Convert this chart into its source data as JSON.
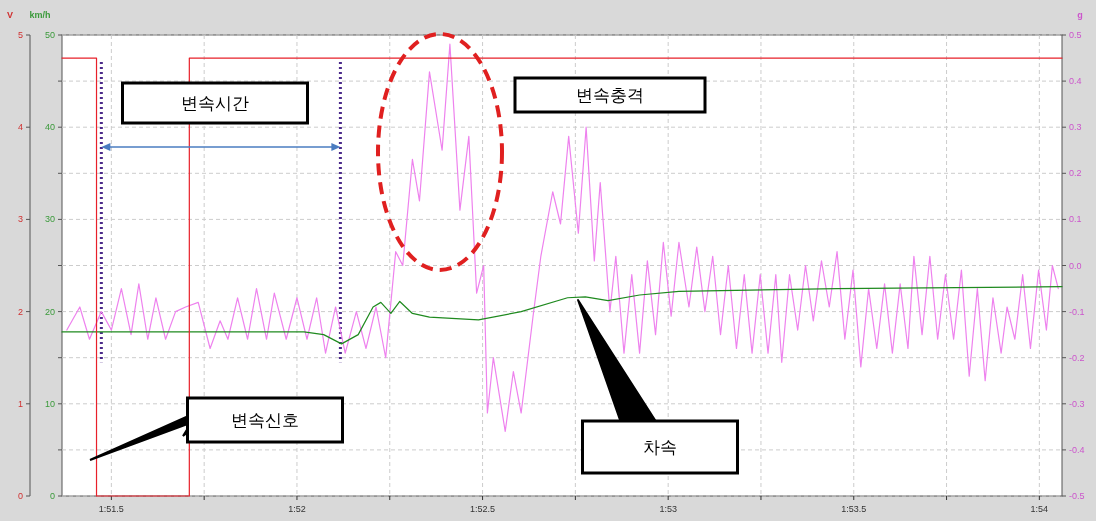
{
  "chart_data": {
    "type": "line",
    "xlim": [
      111.367,
      114.061
    ],
    "xticks": [
      {
        "value": 111.5,
        "label": "1:51.5"
      },
      {
        "value": 111.75,
        "label": null
      },
      {
        "value": 112,
        "label": "1:52"
      },
      {
        "value": 112.25,
        "label": null
      },
      {
        "value": 112.5,
        "label": "1:52.5"
      },
      {
        "value": 112.75,
        "label": null
      },
      {
        "value": 113,
        "label": "1:53"
      },
      {
        "value": 113.25,
        "label": null
      },
      {
        "value": 113.5,
        "label": "1:53.5"
      },
      {
        "value": 113.75,
        "label": null
      },
      {
        "value": 114,
        "label": "1:54"
      }
    ],
    "ylabel": "km/h",
    "ylim": [
      0,
      50
    ],
    "yticks": [
      0,
      {
        "value": 5,
        "label": null
      },
      10,
      {
        "value": 15,
        "label": null
      },
      20,
      {
        "value": 25,
        "label": null
      },
      30,
      {
        "value": 35,
        "label": null
      },
      40,
      {
        "value": 45,
        "label": null
      },
      50
    ],
    "y2label": "g",
    "y2lim": [
      -0.5,
      0.5
    ],
    "y2ticks": [
      -0.5,
      -0.4,
      -0.3,
      -0.2,
      -0.1,
      {
        "value": 0,
        "label": "0.0"
      },
      0.1,
      0.2,
      0.3,
      0.4,
      0.5
    ],
    "y3label": "V",
    "y3lim": [
      0,
      5
    ],
    "y3ticks": [
      0,
      1,
      2,
      3,
      4,
      5
    ],
    "grid": true,
    "series": [
      {
        "name": "변속신호",
        "axis": "y3",
        "color": "#e8202a",
        "x": [
          111.367,
          111.46,
          111.46,
          111.71,
          111.71,
          114.061
        ],
        "values": [
          4.75,
          4.75,
          0,
          0,
          4.75,
          4.75
        ]
      },
      {
        "axis": "y",
        "color": "#1f8a1f",
        "x": [
          111.367,
          112.019,
          112.072,
          112.12,
          112.165,
          112.205,
          112.226,
          112.253,
          112.277,
          112.311,
          112.357,
          112.489,
          112.604,
          112.729,
          112.777,
          112.838,
          112.923,
          113.029,
          113.455,
          114.061
        ],
        "values": [
          17.8,
          17.8,
          17.5,
          16.5,
          17.5,
          20.5,
          21,
          19.8,
          21.1,
          19.8,
          19.4,
          19.1,
          20.0,
          21.5,
          21.6,
          21.2,
          21.8,
          22.2,
          22.5,
          22.7
        ]
      },
      {
        "axis": "y2",
        "color": "#ee82ee",
        "x": [
          111.38,
          111.415,
          111.441,
          111.473,
          111.5,
          111.527,
          111.553,
          111.574,
          111.598,
          111.62,
          111.646,
          111.673,
          111.7,
          111.734,
          111.766,
          111.793,
          111.814,
          111.84,
          111.867,
          111.891,
          111.918,
          111.939,
          111.971,
          112.0,
          112.027,
          112.053,
          112.077,
          112.104,
          112.13,
          112.16,
          112.186,
          112.213,
          112.239,
          112.266,
          112.285,
          112.311,
          112.33,
          112.357,
          112.391,
          112.412,
          112.439,
          112.463,
          112.484,
          112.503,
          112.513,
          112.529,
          112.561,
          112.583,
          112.604,
          112.636,
          112.657,
          112.689,
          112.71,
          112.732,
          112.758,
          112.779,
          112.801,
          112.817,
          112.843,
          112.859,
          112.881,
          112.902,
          112.923,
          112.944,
          112.966,
          112.987,
          113.008,
          113.029,
          113.056,
          113.077,
          113.099,
          113.12,
          113.141,
          113.162,
          113.184,
          113.205,
          113.226,
          113.248,
          113.269,
          113.29,
          113.306,
          113.327,
          113.349,
          113.37,
          113.391,
          113.413,
          113.434,
          113.455,
          113.476,
          113.498,
          113.519,
          113.54,
          113.562,
          113.583,
          113.604,
          113.625,
          113.646,
          113.662,
          113.684,
          113.705,
          113.726,
          113.747,
          113.769,
          113.79,
          113.811,
          113.833,
          113.854,
          113.875,
          113.897,
          113.913,
          113.934,
          113.955,
          113.976,
          113.998,
          114.019,
          114.035,
          114.051
        ],
        "values": [
          -0.14,
          -0.09,
          -0.16,
          -0.1,
          -0.14,
          -0.05,
          -0.15,
          -0.04,
          -0.16,
          -0.07,
          -0.16,
          -0.1,
          -0.09,
          -0.08,
          -0.18,
          -0.12,
          -0.16,
          -0.07,
          -0.16,
          -0.05,
          -0.16,
          -0.06,
          -0.16,
          -0.07,
          -0.16,
          -0.07,
          -0.19,
          -0.09,
          -0.19,
          -0.1,
          -0.18,
          -0.09,
          -0.2,
          0.03,
          0.0,
          0.23,
          0.14,
          0.42,
          0.25,
          0.48,
          0.12,
          0.28,
          -0.06,
          0.0,
          -0.32,
          -0.2,
          -0.36,
          -0.23,
          -0.32,
          -0.11,
          0.02,
          0.16,
          0.09,
          0.28,
          0.07,
          0.3,
          0.01,
          0.18,
          -0.1,
          0.02,
          -0.19,
          -0.02,
          -0.19,
          0.01,
          -0.15,
          0.05,
          -0.11,
          0.05,
          -0.09,
          0.04,
          -0.1,
          0.02,
          -0.15,
          0.0,
          -0.18,
          -0.02,
          -0.19,
          -0.02,
          -0.19,
          -0.02,
          -0.21,
          -0.02,
          -0.14,
          0.0,
          -0.12,
          0.01,
          -0.09,
          0.03,
          -0.16,
          -0.01,
          -0.22,
          -0.05,
          -0.18,
          -0.04,
          -0.19,
          -0.04,
          -0.18,
          0.02,
          -0.15,
          0.02,
          -0.16,
          -0.02,
          -0.16,
          -0.01,
          -0.24,
          -0.05,
          -0.25,
          -0.07,
          -0.19,
          -0.09,
          -0.16,
          -0.02,
          -0.18,
          -0.01,
          -0.14,
          0.0,
          -0.05
        ]
      }
    ],
    "ref_lines": [
      {
        "axis": "x",
        "value": 111.473,
        "color": "#4b2a8a",
        "line_style": "dotted"
      },
      {
        "axis": "x",
        "value": 112.117,
        "color": "#4b2a8a",
        "line_style": "dotted"
      }
    ],
    "annotations": [
      "변속시간",
      "변속충격",
      "차속"
    ]
  }
}
